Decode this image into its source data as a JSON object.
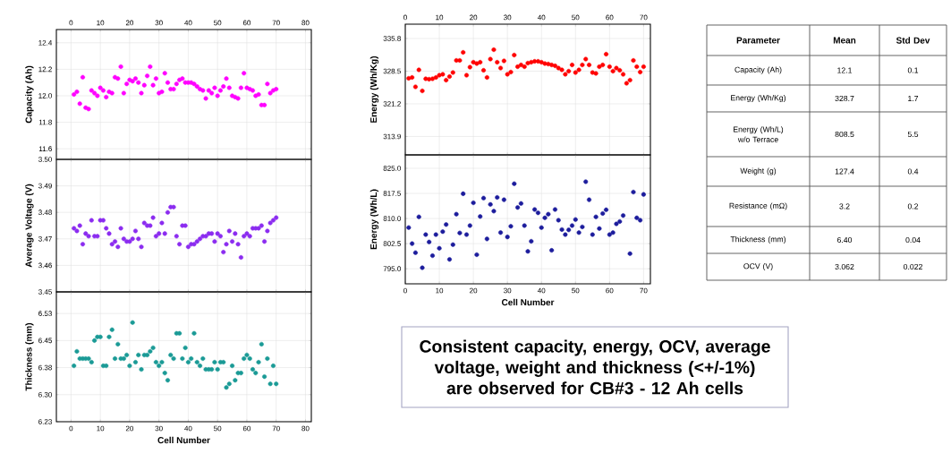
{
  "chart_data": [
    {
      "type": "scatter",
      "ylabel": "Capacity (Ah)",
      "xlim": [
        -5,
        82
      ],
      "xticks": [
        0,
        10,
        20,
        30,
        40,
        50,
        60,
        70,
        80
      ],
      "ylim": [
        11.52,
        12.5
      ],
      "yticks": [
        11.6,
        11.8,
        {
          "value": 12,
          "label": "12.0"
        },
        12.2,
        12.4
      ],
      "grid": true,
      "marker": "circle",
      "x": [
        1,
        2,
        3,
        4,
        5,
        6,
        7,
        8,
        9,
        10,
        11,
        12,
        13,
        14,
        15,
        16,
        17,
        18,
        19,
        20,
        21,
        22,
        23,
        24,
        25,
        26,
        27,
        28,
        29,
        30,
        31,
        32,
        33,
        34,
        35,
        36,
        37,
        38,
        39,
        40,
        41,
        42,
        43,
        44,
        45,
        46,
        47,
        48,
        49,
        50,
        51,
        52,
        53,
        54,
        55,
        56,
        57,
        58,
        59,
        60,
        61,
        62,
        63,
        64,
        65,
        66,
        67,
        68,
        69,
        70
      ],
      "series": [
        {
          "color": "#ff00ff",
          "values": [
            12.01,
            12.03,
            11.94,
            12.14,
            11.91,
            11.9,
            12.04,
            12.02,
            12.0,
            12.06,
            12.04,
            11.99,
            12.03,
            12.02,
            12.14,
            12.13,
            12.22,
            12.02,
            12.09,
            12.12,
            12.11,
            12.13,
            12.1,
            12.02,
            12.08,
            12.15,
            12.22,
            12.08,
            12.13,
            12.02,
            12.03,
            12.17,
            12.1,
            12.05,
            12.05,
            12.09,
            12.12,
            12.13,
            12.1,
            12.1,
            12.1,
            12.09,
            12.07,
            12.05,
            12.04,
            11.98,
            12.04,
            12.02,
            12.06,
            12.0,
            12.04,
            12.07,
            12.13,
            12.06,
            12.0,
            11.99,
            11.98,
            12.06,
            12.17,
            12.06,
            12.05,
            12.04,
            12.0,
            12.01,
            11.93,
            11.93,
            12.09,
            12.02,
            12.04,
            12.05
          ]
        }
      ]
    },
    {
      "type": "scatter",
      "ylabel": "Average Voltage (V)",
      "xlim": [
        -5,
        82
      ],
      "xticks": [
        0,
        10,
        20,
        30,
        40,
        50,
        60,
        70,
        80
      ],
      "ylim": [
        3.45,
        3.5
      ],
      "yticks": [
        3.45,
        3.46,
        3.47,
        3.48,
        3.49,
        {
          "value": 3.5,
          "label": "3.50"
        }
      ],
      "tick_labels": "y",
      "grid": true,
      "marker": "circle",
      "x": [
        1,
        2,
        3,
        4,
        5,
        6,
        7,
        8,
        9,
        10,
        11,
        12,
        13,
        14,
        15,
        16,
        17,
        18,
        19,
        20,
        21,
        22,
        23,
        24,
        25,
        26,
        27,
        28,
        29,
        30,
        31,
        32,
        33,
        34,
        35,
        36,
        37,
        38,
        39,
        40,
        41,
        42,
        43,
        44,
        45,
        46,
        47,
        48,
        49,
        50,
        51,
        52,
        53,
        54,
        55,
        56,
        57,
        58,
        59,
        60,
        61,
        62,
        63,
        64,
        65,
        66,
        67,
        68,
        69,
        70
      ],
      "series": [
        {
          "color": "#8b2cf0",
          "values": [
            3.474,
            3.473,
            3.475,
            3.468,
            3.472,
            3.471,
            3.477,
            3.471,
            3.471,
            3.477,
            3.477,
            3.474,
            3.472,
            3.468,
            3.469,
            3.467,
            3.474,
            3.47,
            3.469,
            3.469,
            3.47,
            3.473,
            3.47,
            3.467,
            3.476,
            3.475,
            3.475,
            3.478,
            3.471,
            3.472,
            3.476,
            3.472,
            3.48,
            3.482,
            3.482,
            3.471,
            3.468,
            3.475,
            3.475,
            3.467,
            3.468,
            3.468,
            3.469,
            3.47,
            3.471,
            3.471,
            3.472,
            3.472,
            3.469,
            3.472,
            3.471,
            3.465,
            3.468,
            3.473,
            3.469,
            3.472,
            3.468,
            3.463,
            3.471,
            3.472,
            3.471,
            3.474,
            3.474,
            3.474,
            3.475,
            3.469,
            3.473,
            3.476,
            3.477,
            3.478
          ]
        }
      ]
    },
    {
      "type": "scatter",
      "ylabel": "Thickness (mm)",
      "xlabel": "Cell Number",
      "xlim": [
        -5,
        82
      ],
      "xticks": [
        0,
        10,
        20,
        30,
        40,
        50,
        60,
        70,
        80
      ],
      "ylim": [
        6.225,
        6.585
      ],
      "yticks": [
        {
          "value": 6.225,
          "label": "6.23"
        },
        {
          "value": 6.3,
          "label": "6.30"
        },
        {
          "value": 6.375,
          "label": "6.38"
        },
        {
          "value": 6.45,
          "label": "6.45"
        },
        {
          "value": 6.525,
          "label": "6.53"
        }
      ],
      "grid": true,
      "marker": "circle",
      "x": [
        1,
        2,
        3,
        4,
        5,
        6,
        7,
        8,
        9,
        10,
        11,
        12,
        13,
        14,
        15,
        16,
        17,
        18,
        19,
        20,
        21,
        22,
        23,
        24,
        25,
        26,
        27,
        28,
        29,
        30,
        31,
        32,
        33,
        34,
        35,
        36,
        37,
        38,
        39,
        40,
        41,
        42,
        43,
        44,
        45,
        46,
        47,
        48,
        49,
        50,
        51,
        52,
        53,
        54,
        55,
        56,
        57,
        58,
        59,
        60,
        61,
        62,
        63,
        64,
        65,
        66,
        67,
        68,
        69,
        70
      ],
      "series": [
        {
          "color": "#1a9a96",
          "values": [
            6.38,
            6.42,
            6.4,
            6.4,
            6.4,
            6.4,
            6.39,
            6.45,
            6.46,
            6.46,
            6.38,
            6.38,
            6.46,
            6.48,
            6.4,
            6.44,
            6.4,
            6.4,
            6.41,
            6.38,
            6.5,
            6.39,
            6.41,
            6.37,
            6.41,
            6.41,
            6.42,
            6.43,
            6.39,
            6.38,
            6.39,
            6.36,
            6.34,
            6.41,
            6.4,
            6.47,
            6.47,
            6.4,
            6.43,
            6.39,
            6.4,
            6.47,
            6.39,
            6.38,
            6.4,
            6.37,
            6.37,
            6.37,
            6.39,
            6.37,
            6.39,
            6.39,
            6.32,
            6.33,
            6.38,
            6.34,
            6.36,
            6.36,
            6.4,
            6.41,
            6.4,
            6.37,
            6.36,
            6.39,
            6.44,
            6.35,
            6.4,
            6.33,
            6.38,
            6.33
          ]
        }
      ]
    },
    {
      "type": "scatter",
      "ylabel": "Energy (Wh/Kg)",
      "xlim": [
        0,
        72
      ],
      "xticks": [
        0,
        10,
        20,
        30,
        40,
        50,
        60,
        70
      ],
      "ylim": [
        309.8,
        339
      ],
      "yticks": [
        313.9,
        321.2,
        328.5,
        335.8
      ],
      "grid": true,
      "marker": "circle",
      "x": [
        1,
        2,
        3,
        4,
        5,
        6,
        7,
        8,
        9,
        10,
        11,
        12,
        13,
        14,
        15,
        16,
        17,
        18,
        19,
        20,
        21,
        22,
        23,
        24,
        25,
        26,
        27,
        28,
        29,
        30,
        31,
        32,
        33,
        34,
        35,
        36,
        37,
        38,
        39,
        40,
        41,
        42,
        43,
        44,
        45,
        46,
        47,
        48,
        49,
        50,
        51,
        52,
        53,
        54,
        55,
        56,
        57,
        58,
        59,
        60,
        61,
        62,
        63,
        64,
        65,
        66,
        67,
        68,
        69,
        70
      ],
      "series": [
        {
          "color": "#ff0000",
          "values": [
            326.9,
            327.1,
            325.0,
            328.8,
            324.1,
            326.8,
            326.7,
            326.8,
            327.1,
            327.6,
            327.8,
            326.5,
            327.3,
            328.2,
            330.9,
            330.9,
            332.7,
            327.6,
            329.4,
            330.5,
            330.2,
            330.5,
            328.7,
            327.1,
            331.2,
            333.3,
            330.5,
            329.2,
            330.8,
            327.8,
            328.3,
            332.1,
            329.5,
            329.9,
            329.5,
            330.3,
            330.5,
            330.7,
            330.7,
            330.5,
            330.2,
            330.1,
            329.9,
            329.7,
            329.2,
            328.8,
            327.8,
            328.5,
            329.9,
            328.2,
            328.8,
            329.9,
            331.2,
            329.9,
            328.2,
            328.0,
            329.5,
            329.9,
            332.3,
            329.5,
            328.5,
            329.2,
            328.7,
            327.8,
            325.8,
            326.5,
            330.9,
            329.5,
            328.3,
            329.5
          ]
        }
      ]
    },
    {
      "type": "scatter",
      "ylabel": "Energy (Wh/L)",
      "xlabel": "Cell Number",
      "xlim": [
        0,
        72
      ],
      "xticks": [
        0,
        10,
        20,
        30,
        40,
        50,
        60,
        70
      ],
      "ylim": [
        790.5,
        829
      ],
      "yticks": [
        {
          "value": 795,
          "label": "795.0"
        },
        {
          "value": 802.5,
          "label": "802.5"
        },
        {
          "value": 810,
          "label": "810.0"
        },
        {
          "value": 817.5,
          "label": "817.5"
        },
        {
          "value": 825,
          "label": "825.0"
        }
      ],
      "grid": true,
      "marker": "circle",
      "x": [
        1,
        2,
        3,
        4,
        5,
        6,
        7,
        8,
        9,
        10,
        11,
        12,
        13,
        14,
        15,
        16,
        17,
        18,
        19,
        20,
        21,
        22,
        23,
        24,
        25,
        26,
        27,
        28,
        29,
        30,
        31,
        32,
        33,
        34,
        35,
        36,
        37,
        38,
        39,
        40,
        41,
        42,
        43,
        44,
        45,
        46,
        47,
        48,
        49,
        50,
        51,
        52,
        53,
        54,
        55,
        56,
        57,
        58,
        59,
        60,
        61,
        62,
        63,
        64,
        66,
        67,
        68,
        69,
        70
      ],
      "series": [
        {
          "color": "#1c1c9c",
          "values": [
            807.3,
            802.5,
            799.8,
            810.5,
            795.3,
            805.2,
            803.0,
            798.9,
            805.2,
            801.1,
            806.1,
            808.2,
            797.8,
            802.2,
            811.3,
            805.7,
            817.4,
            805.2,
            807.9,
            814.7,
            799.2,
            810.6,
            816.1,
            803.9,
            814.2,
            812.2,
            816.3,
            805.8,
            815.6,
            804.5,
            807.7,
            820.4,
            813.3,
            814.5,
            807.9,
            800.2,
            803.2,
            812.7,
            811.7,
            807.3,
            810.2,
            811.3,
            800.5,
            812.7,
            809.5,
            806.7,
            805.2,
            806.6,
            807.9,
            809.7,
            805.8,
            807.5,
            821.0,
            815.6,
            805.2,
            810.5,
            807.0,
            811.5,
            812.6,
            805.2,
            805.8,
            808.4,
            809.1,
            810.9,
            799.5,
            817.9,
            810.2,
            809.5,
            817.2
          ]
        }
      ]
    },
    {
      "type": "other",
      "annotations": [
        "Parameter",
        "Mean",
        "Std Dev",
        "Capacity (Ah)",
        "12.1",
        "0.1",
        "Energy (Wh/Kg)",
        "328.7",
        "1.7",
        "Energy (Wh/L) w/o Terrace",
        "808.5",
        "5.5",
        "Weight (g)",
        "127.4",
        "0.4",
        "Resistance (mΩ)",
        "3.2",
        "0.2",
        "Thickness (mm)",
        "6.40",
        "0.04",
        "OCV (V)",
        "3.062",
        "0.022"
      ]
    },
    {
      "type": "other",
      "annotations": [
        "Consistent capacity, energy, OCV, average voltage, weight and thickness (<+/-1%) are observed for CB#3 - 12 Ah cells"
      ]
    }
  ]
}
